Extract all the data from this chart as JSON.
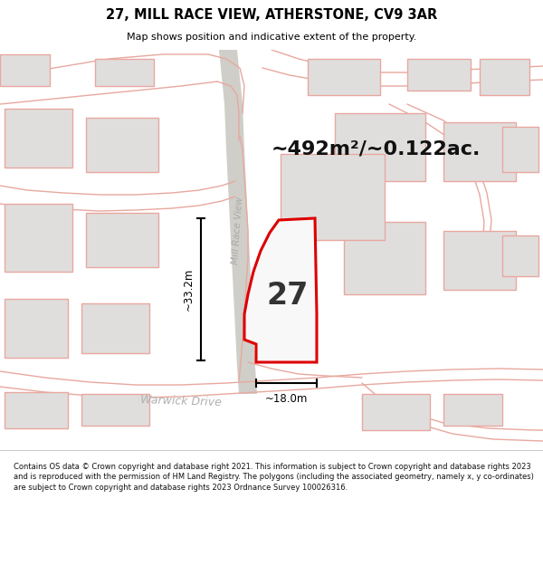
{
  "title": "27, MILL RACE VIEW, ATHERSTONE, CV9 3AR",
  "subtitle": "Map shows position and indicative extent of the property.",
  "area_text": "~492m²/~0.122ac.",
  "label_27": "27",
  "dim_vertical": "~33.2m",
  "dim_horizontal": "~18.0m",
  "road_label1": "Mill Race View",
  "road_label2": "Warwick Drive",
  "footer": "Contains OS data © Crown copyright and database right 2021. This information is subject to Crown copyright and database rights 2023 and is reproduced with the permission of HM Land Registry. The polygons (including the associated geometry, namely x, y co-ordinates) are subject to Crown copyright and database rights 2023 Ordnance Survey 100026316.",
  "bg_color": "#f7f6f4",
  "road_outline_color": "#e8a8a0",
  "road_fill_color": "#f2efec",
  "grey_road_color": "#d0cec8",
  "building_fill": "#e0dedd",
  "building_edge": "#e8a8a0",
  "plot_fill": "#f8f8f8",
  "plot_stroke": "#dd0000",
  "dim_color": "#222222",
  "area_color": "#111111",
  "footer_bg": "#ffffff",
  "map_bg": "#f7f6f4"
}
